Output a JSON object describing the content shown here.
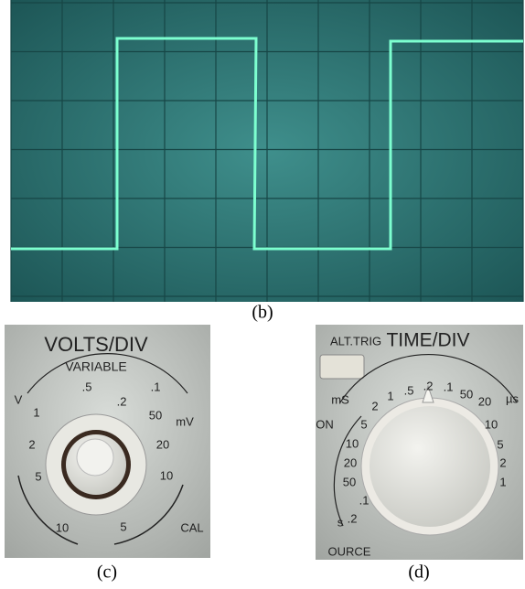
{
  "figure": {
    "panels": [
      {
        "label": "(b)"
      },
      {
        "label": "(c)",
        "title": "VOLTS/DIV",
        "subtitle": "VARIABLE",
        "dial_labels": [
          "V",
          ".5",
          ".2",
          ".1",
          "1",
          "50",
          "mV",
          "2",
          "20",
          "5",
          "10",
          "10",
          "5",
          "CAL"
        ]
      },
      {
        "label": "(d)",
        "button": "ALT.TRIG",
        "title": "TIME/DIV",
        "dial_labels": [
          "mS",
          "2",
          "1",
          ".5",
          ".2",
          ".1",
          "50",
          "20",
          "µs",
          "ON",
          "5",
          "10",
          "10",
          "5",
          "20",
          "2",
          "50",
          "1",
          ".1",
          ".2",
          "s",
          "OURCE"
        ]
      }
    ]
  }
}
